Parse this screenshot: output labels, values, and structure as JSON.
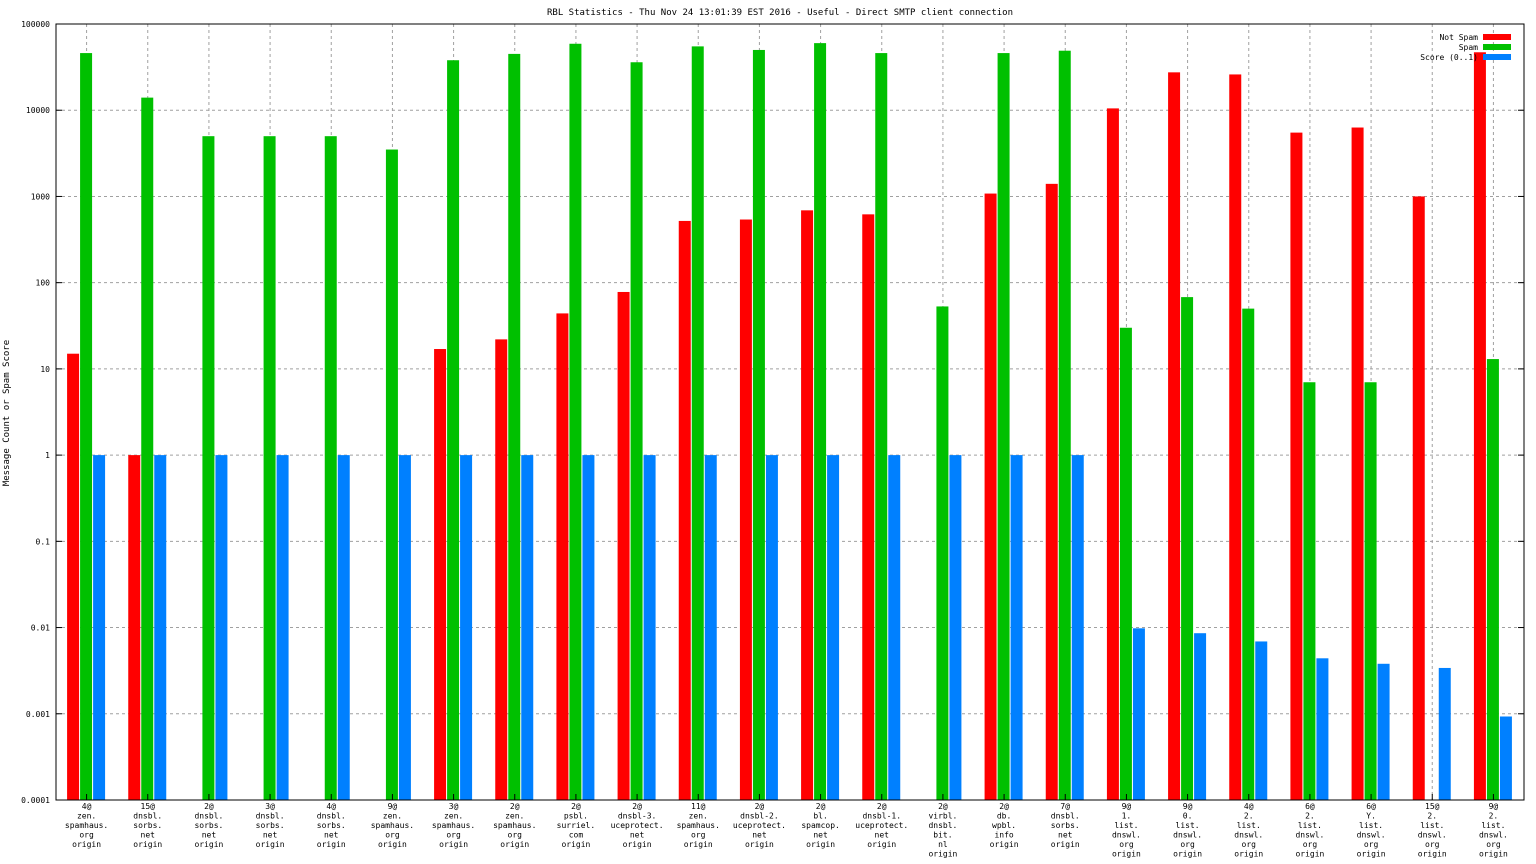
{
  "chart_data": {
    "type": "bar",
    "title": "RBL Statistics - Thu Nov 24 13:01:39 EST 2016 - Useful - Direct SMTP client connection",
    "xlabel": "",
    "ylabel": "Message Count or Spam Score",
    "yscale": "log",
    "ylim": [
      0.0001,
      100000
    ],
    "yticks": [
      "0.0001",
      "0.001",
      "0.01",
      "0.1",
      "1",
      "10",
      "100",
      "1000",
      "10000",
      "100000"
    ],
    "grid": true,
    "legend_position": "top-right",
    "categories": [
      [
        "4@",
        "zen.",
        "spamhaus.",
        "org",
        "origin"
      ],
      [
        "15@",
        "dnsbl.",
        "sorbs.",
        "net",
        "origin"
      ],
      [
        "2@",
        "dnsbl.",
        "sorbs.",
        "net",
        "origin"
      ],
      [
        "3@",
        "dnsbl.",
        "sorbs.",
        "net",
        "origin"
      ],
      [
        "4@",
        "dnsbl.",
        "sorbs.",
        "net",
        "origin"
      ],
      [
        "9@",
        "zen.",
        "spamhaus.",
        "org",
        "origin"
      ],
      [
        "3@",
        "zen.",
        "spamhaus.",
        "org",
        "origin"
      ],
      [
        "2@",
        "zen.",
        "spamhaus.",
        "org",
        "origin"
      ],
      [
        "2@",
        "psbl.",
        "surriel.",
        "com",
        "origin"
      ],
      [
        "2@",
        "dnsbl-3.",
        "uceprotect.",
        "net",
        "origin"
      ],
      [
        "11@",
        "zen.",
        "spamhaus.",
        "org",
        "origin"
      ],
      [
        "2@",
        "dnsbl-2.",
        "uceprotect.",
        "net",
        "origin"
      ],
      [
        "2@",
        "bl.",
        "spamcop.",
        "net",
        "origin"
      ],
      [
        "2@",
        "dnsbl-1.",
        "uceprotect.",
        "net",
        "origin"
      ],
      [
        "2@",
        "virbl.",
        "dnsbl.",
        "bit.",
        "nl",
        "origin"
      ],
      [
        "2@",
        "db.",
        "wpbl.",
        "info",
        "origin"
      ],
      [
        "7@",
        "dnsbl.",
        "sorbs.",
        "net",
        "origin"
      ],
      [
        "9@",
        "1.",
        "list.",
        "dnswl.",
        "org",
        "origin"
      ],
      [
        "9@",
        "0.",
        "list.",
        "dnswl.",
        "org",
        "origin"
      ],
      [
        "4@",
        "2.",
        "list.",
        "dnswl.",
        "org",
        "origin"
      ],
      [
        "6@",
        "2.",
        "list.",
        "dnswl.",
        "org",
        "origin"
      ],
      [
        "6@",
        "Y.",
        "list.",
        "dnswl.",
        "org",
        "origin"
      ],
      [
        "15@",
        "2.",
        "list.",
        "dnswl.",
        "org",
        "origin"
      ],
      [
        "9@",
        "2.",
        "list.",
        "dnswl.",
        "org",
        "origin"
      ]
    ],
    "series": [
      {
        "name": "Not Spam",
        "color": "#ff0000",
        "values": [
          15,
          1,
          null,
          null,
          null,
          null,
          17,
          22,
          44,
          78,
          520,
          540,
          690,
          620,
          null,
          1080,
          1400,
          10500,
          27500,
          26000,
          5500,
          6300,
          1000,
          47000
        ]
      },
      {
        "name": "Spam",
        "color": "#00c000",
        "values": [
          46000,
          14000,
          5000,
          5000,
          5000,
          3500,
          38000,
          45000,
          59000,
          36000,
          55000,
          50000,
          60000,
          46000,
          53,
          46000,
          49000,
          30,
          68,
          50,
          7,
          7,
          null,
          13
        ]
      },
      {
        "name": "Score (0..1)",
        "color": "#0080ff",
        "values": [
          1,
          1,
          1,
          1,
          1,
          1,
          1,
          1,
          1,
          1,
          1,
          1,
          1,
          1,
          1,
          1,
          1,
          0.0098,
          0.0086,
          0.0069,
          0.0044,
          0.0038,
          0.0034,
          0.00093
        ]
      }
    ]
  }
}
